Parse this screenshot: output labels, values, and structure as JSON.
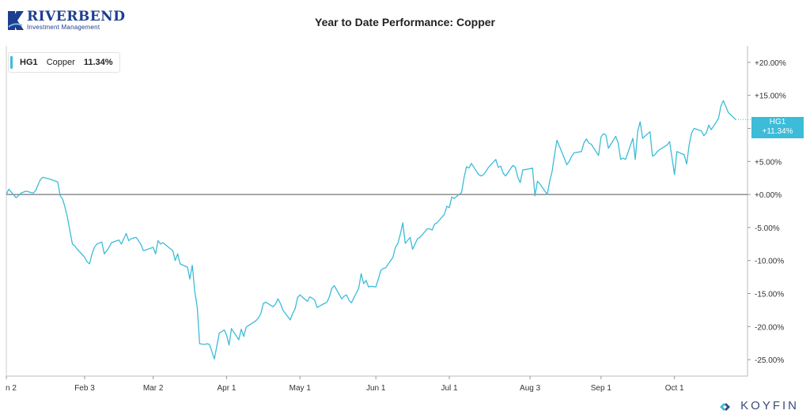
{
  "header": {
    "logo_name": "RIVERBEND",
    "logo_subtitle": "Investment Management",
    "title": "Year to Date Performance: Copper"
  },
  "legend": {
    "symbol": "HG1",
    "name": "Copper",
    "value": "11.34%"
  },
  "last_price_tag": {
    "symbol": "HG1",
    "value": "+11.34%"
  },
  "footer": {
    "brand": "KOYFIN"
  },
  "colors": {
    "series": "#3cbcd8",
    "brand_navy": "#1d3f8f",
    "zero_line": "#555555",
    "axis": "#999999"
  },
  "chart_data": {
    "type": "line",
    "title": "Year to Date Performance: Copper",
    "xlabel": "",
    "ylabel": "",
    "ylim": [
      -27.5,
      22.5
    ],
    "y_ticks": [
      20,
      15,
      10,
      5,
      0,
      -5,
      -10,
      -15,
      -20,
      -25
    ],
    "y_tick_labels": [
      "+20.00%",
      "+15.00%",
      "+10.00%",
      "+5.00%",
      "+0.00%",
      "-5.00%",
      "-10.00%",
      "-15.00%",
      "-20.00%",
      "-25.00%"
    ],
    "x_tick_labels": [
      {
        "date": "2020-01-02",
        "label": "n 2"
      },
      {
        "date": "2020-02-03",
        "label": "Feb 3"
      },
      {
        "date": "2020-03-02",
        "label": "Mar 2"
      },
      {
        "date": "2020-04-01",
        "label": "Apr 1"
      },
      {
        "date": "2020-05-01",
        "label": "May 1"
      },
      {
        "date": "2020-06-01",
        "label": "Jun 1"
      },
      {
        "date": "2020-07-01",
        "label": "Jul 1"
      },
      {
        "date": "2020-08-03",
        "label": "Aug 3"
      },
      {
        "date": "2020-09-01",
        "label": "Sep 1"
      },
      {
        "date": "2020-10-01",
        "label": "Oct 1"
      }
    ],
    "grid": false,
    "legend_position": "top-left",
    "series": [
      {
        "name": "Copper",
        "values": [
          [
            "2020-01-02",
            0.0
          ],
          [
            "2020-01-03",
            0.8
          ],
          [
            "2020-01-06",
            -0.5
          ],
          [
            "2020-01-08",
            0.2
          ],
          [
            "2020-01-10",
            0.5
          ],
          [
            "2020-01-13",
            0.2
          ],
          [
            "2020-01-14",
            0.6
          ],
          [
            "2020-01-15",
            1.5
          ],
          [
            "2020-01-16",
            2.3
          ],
          [
            "2020-01-17",
            2.6
          ],
          [
            "2020-01-20",
            2.3
          ],
          [
            "2020-01-23",
            1.9
          ],
          [
            "2020-01-24",
            -0.2
          ],
          [
            "2020-01-25",
            -0.7
          ],
          [
            "2020-01-26",
            -2.0
          ],
          [
            "2020-01-27",
            -3.5
          ],
          [
            "2020-01-28",
            -5.5
          ],
          [
            "2020-01-29",
            -7.5
          ],
          [
            "2020-01-30",
            -7.8
          ],
          [
            "2020-01-31",
            -8.3
          ],
          [
            "2020-02-03",
            -9.5
          ],
          [
            "2020-02-04",
            -10.2
          ],
          [
            "2020-02-05",
            -10.5
          ],
          [
            "2020-02-06",
            -9.0
          ],
          [
            "2020-02-07",
            -8.0
          ],
          [
            "2020-02-08",
            -7.5
          ],
          [
            "2020-02-10",
            -7.2
          ],
          [
            "2020-02-11",
            -9.0
          ],
          [
            "2020-02-12",
            -8.5
          ],
          [
            "2020-02-13",
            -8.0
          ],
          [
            "2020-02-14",
            -7.3
          ],
          [
            "2020-02-17",
            -6.9
          ],
          [
            "2020-02-18",
            -7.5
          ],
          [
            "2020-02-19",
            -6.7
          ],
          [
            "2020-02-20",
            -5.9
          ],
          [
            "2020-02-21",
            -7.0
          ],
          [
            "2020-02-22",
            -6.7
          ],
          [
            "2020-02-24",
            -6.5
          ],
          [
            "2020-02-25",
            -7.0
          ],
          [
            "2020-02-26",
            -7.6
          ],
          [
            "2020-02-27",
            -8.5
          ],
          [
            "2020-02-28",
            -8.4
          ],
          [
            "2020-03-02",
            -8.0
          ],
          [
            "2020-03-03",
            -9.0
          ],
          [
            "2020-03-04",
            -7.0
          ],
          [
            "2020-03-05",
            -7.5
          ],
          [
            "2020-03-06",
            -7.3
          ],
          [
            "2020-03-09",
            -8.2
          ],
          [
            "2020-03-10",
            -8.5
          ],
          [
            "2020-03-11",
            -10.0
          ],
          [
            "2020-03-12",
            -9.0
          ],
          [
            "2020-03-13",
            -10.5
          ],
          [
            "2020-03-16",
            -11.0
          ],
          [
            "2020-03-17",
            -12.8
          ],
          [
            "2020-03-18",
            -10.7
          ],
          [
            "2020-03-19",
            -14.7
          ],
          [
            "2020-03-20",
            -17.0
          ],
          [
            "2020-03-21",
            -22.6
          ],
          [
            "2020-03-23",
            -22.7
          ],
          [
            "2020-03-24",
            -22.6
          ],
          [
            "2020-03-25",
            -22.7
          ],
          [
            "2020-03-27",
            -24.9
          ],
          [
            "2020-03-29",
            -21.0
          ],
          [
            "2020-03-31",
            -20.5
          ],
          [
            "2020-04-01",
            -21.3
          ],
          [
            "2020-04-02",
            -22.8
          ],
          [
            "2020-04-03",
            -20.3
          ],
          [
            "2020-04-06",
            -22.0
          ],
          [
            "2020-04-07",
            -20.4
          ],
          [
            "2020-04-08",
            -21.5
          ],
          [
            "2020-04-09",
            -20.1
          ],
          [
            "2020-04-13",
            -19.1
          ],
          [
            "2020-04-14",
            -18.7
          ],
          [
            "2020-04-15",
            -18.0
          ],
          [
            "2020-04-16",
            -16.5
          ],
          [
            "2020-04-17",
            -16.3
          ],
          [
            "2020-04-20",
            -17.0
          ],
          [
            "2020-04-21",
            -16.6
          ],
          [
            "2020-04-22",
            -15.8
          ],
          [
            "2020-04-23",
            -16.5
          ],
          [
            "2020-04-24",
            -17.5
          ],
          [
            "2020-04-27",
            -19.0
          ],
          [
            "2020-04-28",
            -18.0
          ],
          [
            "2020-04-29",
            -17.3
          ],
          [
            "2020-04-30",
            -15.6
          ],
          [
            "2020-05-01",
            -15.2
          ],
          [
            "2020-05-04",
            -16.2
          ],
          [
            "2020-05-05",
            -15.5
          ],
          [
            "2020-05-06",
            -15.7
          ],
          [
            "2020-05-07",
            -16.0
          ],
          [
            "2020-05-08",
            -17.1
          ],
          [
            "2020-05-11",
            -16.5
          ],
          [
            "2020-05-12",
            -16.3
          ],
          [
            "2020-05-13",
            -15.5
          ],
          [
            "2020-05-14",
            -14.2
          ],
          [
            "2020-05-15",
            -13.8
          ],
          [
            "2020-05-18",
            -15.8
          ],
          [
            "2020-05-19",
            -15.4
          ],
          [
            "2020-05-20",
            -15.2
          ],
          [
            "2020-05-21",
            -16.0
          ],
          [
            "2020-05-22",
            -16.4
          ],
          [
            "2020-05-25",
            -14.2
          ],
          [
            "2020-05-26",
            -12.0
          ],
          [
            "2020-05-27",
            -13.5
          ],
          [
            "2020-05-28",
            -13.0
          ],
          [
            "2020-05-29",
            -14.0
          ],
          [
            "2020-05-30",
            -13.9
          ],
          [
            "2020-06-01",
            -14.0
          ],
          [
            "2020-06-02",
            -12.8
          ],
          [
            "2020-06-03",
            -11.5
          ],
          [
            "2020-06-04",
            -11.2
          ],
          [
            "2020-06-05",
            -11.1
          ],
          [
            "2020-06-08",
            -9.5
          ],
          [
            "2020-06-09",
            -8.0
          ],
          [
            "2020-06-10",
            -7.4
          ],
          [
            "2020-06-11",
            -6.0
          ],
          [
            "2020-06-12",
            -4.3
          ],
          [
            "2020-06-13",
            -7.4
          ],
          [
            "2020-06-15",
            -6.5
          ],
          [
            "2020-06-16",
            -8.3
          ],
          [
            "2020-06-17",
            -7.5
          ],
          [
            "2020-06-18",
            -6.7
          ],
          [
            "2020-06-19",
            -6.5
          ],
          [
            "2020-06-22",
            -5.2
          ],
          [
            "2020-06-23",
            -5.2
          ],
          [
            "2020-06-24",
            -5.4
          ],
          [
            "2020-06-25",
            -4.5
          ],
          [
            "2020-06-26",
            -4.3
          ],
          [
            "2020-06-29",
            -3.0
          ],
          [
            "2020-06-30",
            -1.8
          ],
          [
            "2020-07-01",
            -2.0
          ],
          [
            "2020-07-02",
            -0.4
          ],
          [
            "2020-07-03",
            -0.6
          ],
          [
            "2020-07-06",
            0.3
          ],
          [
            "2020-07-07",
            2.5
          ],
          [
            "2020-07-08",
            4.2
          ],
          [
            "2020-07-09",
            4.0
          ],
          [
            "2020-07-10",
            4.7
          ],
          [
            "2020-07-13",
            3.0
          ],
          [
            "2020-07-14",
            2.8
          ],
          [
            "2020-07-15",
            3.0
          ],
          [
            "2020-07-16",
            3.5
          ],
          [
            "2020-07-17",
            4.1
          ],
          [
            "2020-07-20",
            5.3
          ],
          [
            "2020-07-21",
            4.1
          ],
          [
            "2020-07-22",
            4.3
          ],
          [
            "2020-07-23",
            3.2
          ],
          [
            "2020-07-24",
            2.8
          ],
          [
            "2020-07-27",
            4.4
          ],
          [
            "2020-07-28",
            4.1
          ],
          [
            "2020-07-29",
            2.6
          ],
          [
            "2020-07-30",
            1.8
          ],
          [
            "2020-07-31",
            3.7
          ],
          [
            "2020-08-03",
            3.9
          ],
          [
            "2020-08-04",
            4.0
          ],
          [
            "2020-08-05",
            -0.2
          ],
          [
            "2020-08-06",
            2.0
          ],
          [
            "2020-08-07",
            1.6
          ],
          [
            "2020-08-10",
            0.0
          ],
          [
            "2020-08-11",
            2.0
          ],
          [
            "2020-08-12",
            3.5
          ],
          [
            "2020-08-13",
            6.0
          ],
          [
            "2020-08-14",
            8.2
          ],
          [
            "2020-08-17",
            5.5
          ],
          [
            "2020-08-18",
            4.5
          ],
          [
            "2020-08-19",
            5.0
          ],
          [
            "2020-08-20",
            5.8
          ],
          [
            "2020-08-21",
            6.3
          ],
          [
            "2020-08-24",
            6.5
          ],
          [
            "2020-08-25",
            7.8
          ],
          [
            "2020-08-26",
            8.4
          ],
          [
            "2020-08-27",
            7.8
          ],
          [
            "2020-08-28",
            7.6
          ],
          [
            "2020-08-31",
            5.9
          ],
          [
            "2020-09-01",
            8.7
          ],
          [
            "2020-09-02",
            9.2
          ],
          [
            "2020-09-03",
            9.0
          ],
          [
            "2020-09-04",
            7.0
          ],
          [
            "2020-09-07",
            8.8
          ],
          [
            "2020-09-08",
            7.8
          ],
          [
            "2020-09-09",
            5.3
          ],
          [
            "2020-09-10",
            5.5
          ],
          [
            "2020-09-11",
            5.3
          ],
          [
            "2020-09-14",
            8.5
          ],
          [
            "2020-09-15",
            5.3
          ],
          [
            "2020-09-16",
            9.6
          ],
          [
            "2020-09-17",
            11.0
          ],
          [
            "2020-09-18",
            8.5
          ],
          [
            "2020-09-21",
            9.5
          ],
          [
            "2020-09-22",
            5.8
          ],
          [
            "2020-09-23",
            6.0
          ],
          [
            "2020-09-24",
            6.5
          ],
          [
            "2020-09-25",
            6.8
          ],
          [
            "2020-09-28",
            7.5
          ],
          [
            "2020-09-29",
            8.0
          ],
          [
            "2020-10-01",
            3.0
          ],
          [
            "2020-10-02",
            6.5
          ],
          [
            "2020-10-05",
            6.0
          ],
          [
            "2020-10-06",
            4.6
          ],
          [
            "2020-10-07",
            7.5
          ],
          [
            "2020-10-08",
            9.3
          ],
          [
            "2020-10-09",
            10.0
          ],
          [
            "2020-10-12",
            9.6
          ],
          [
            "2020-10-13",
            8.9
          ],
          [
            "2020-10-14",
            9.3
          ],
          [
            "2020-10-15",
            10.5
          ],
          [
            "2020-10-16",
            9.8
          ],
          [
            "2020-10-19",
            11.5
          ],
          [
            "2020-10-20",
            13.4
          ],
          [
            "2020-10-21",
            14.2
          ],
          [
            "2020-10-22",
            13.3
          ],
          [
            "2020-10-23",
            12.4
          ],
          [
            "2020-10-26",
            11.34
          ]
        ]
      }
    ]
  }
}
